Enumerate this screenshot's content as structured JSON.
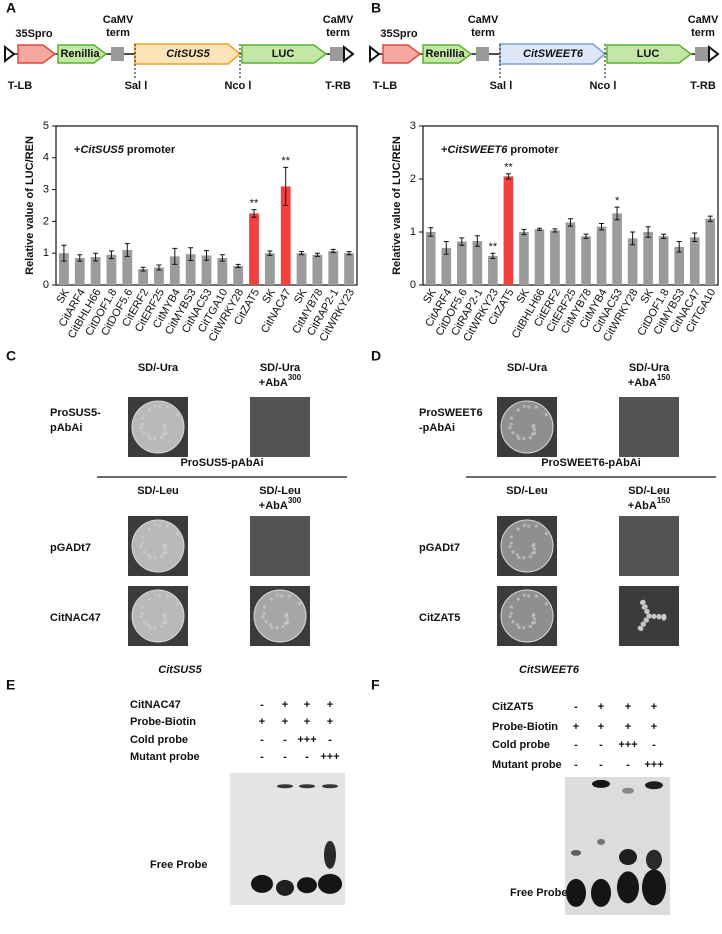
{
  "panel_labels": [
    "A",
    "B",
    "C",
    "D",
    "E",
    "F"
  ],
  "constructs": [
    {
      "promoter": "35Spro",
      "reporter": "Renillia",
      "terminator": [
        "CaMV",
        "term"
      ],
      "gene": "CitSUS5",
      "luc": "LUC",
      "terminator2": [
        "CaMV",
        "term"
      ],
      "left_border": "T-LB",
      "site1": "Sal Ⅰ",
      "site2": "Nco Ⅰ",
      "right_border": "T-RB"
    },
    {
      "promoter": "35Spro",
      "reporter": "Renillia",
      "terminator": [
        "CaMV",
        "term"
      ],
      "gene": "CitSWEET6",
      "luc": "LUC",
      "terminator2": [
        "CaMV",
        "term"
      ],
      "left_border": "T-LB",
      "site1": "Sal Ⅰ",
      "site2": "Nco Ⅰ",
      "right_border": "T-RB"
    }
  ],
  "chart_data": [
    {
      "type": "bar",
      "annotation_parts": [
        "+",
        "CitSUS5",
        " promoter"
      ],
      "ylabel": "Relative value of LUC/REN",
      "categories": [
        "SK",
        "CitARF4",
        "CitBHLH66",
        "CitDOF1.8",
        "CitDOF5.6",
        "CitERF2",
        "CitERF25",
        "CitMYB4",
        "CitMYBS3",
        "CitNAC53",
        "CitTGA10",
        "CitWRKY28",
        "CitZAT5",
        "SK",
        "CitNAC47",
        "SK",
        "CitMYB78",
        "CitRAP2-1",
        "CitWRKY23"
      ],
      "values": [
        1.0,
        0.85,
        0.88,
        0.95,
        1.1,
        0.5,
        0.55,
        0.9,
        0.97,
        0.93,
        0.85,
        0.6,
        2.25,
        1.0,
        3.1,
        1.0,
        0.95,
        1.07,
        1.0
      ],
      "errors": [
        0.25,
        0.1,
        0.12,
        0.12,
        0.2,
        0.06,
        0.08,
        0.25,
        0.2,
        0.15,
        0.1,
        0.05,
        0.12,
        0.07,
        0.6,
        0.05,
        0.05,
        0.05,
        0.05
      ],
      "significance": [
        null,
        null,
        null,
        null,
        null,
        null,
        null,
        null,
        null,
        null,
        null,
        null,
        "**",
        null,
        "**",
        null,
        null,
        null,
        null
      ],
      "colors": [
        "#9b9b9b",
        "#9b9b9b",
        "#9b9b9b",
        "#9b9b9b",
        "#9b9b9b",
        "#9b9b9b",
        "#9b9b9b",
        "#9b9b9b",
        "#9b9b9b",
        "#9b9b9b",
        "#9b9b9b",
        "#9b9b9b",
        "#f0403f",
        "#9b9b9b",
        "#f0403f",
        "#9b9b9b",
        "#9b9b9b",
        "#9b9b9b",
        "#9b9b9b"
      ],
      "ylim": [
        0,
        5
      ],
      "yticks": [
        0,
        1,
        2,
        3,
        4,
        5
      ]
    },
    {
      "type": "bar",
      "annotation_parts": [
        "+",
        "CitSWEET6",
        " promoter"
      ],
      "ylabel": "Relative value of LUC/REN",
      "categories": [
        "SK",
        "CitARF4",
        "CitDOF5.6",
        "CitRAP2-1",
        "CitWRKY23",
        "CitZAT5",
        "SK",
        "CitBHLH66",
        "CitERF2",
        "CitERF25",
        "CitMYB78",
        "CitMYB4",
        "CitNAC53",
        "CitWRKY28",
        "SK",
        "CitDOF1.8",
        "CitMYBS3",
        "CitNAC47",
        "CitTGA10"
      ],
      "values": [
        1.0,
        0.7,
        0.82,
        0.83,
        0.55,
        2.05,
        1.0,
        1.05,
        1.03,
        1.18,
        0.92,
        1.1,
        1.35,
        0.88,
        1.0,
        0.92,
        0.72,
        0.9,
        1.25
      ],
      "errors": [
        0.08,
        0.12,
        0.07,
        0.1,
        0.05,
        0.05,
        0.05,
        0.02,
        0.03,
        0.07,
        0.04,
        0.06,
        0.12,
        0.12,
        0.1,
        0.04,
        0.1,
        0.08,
        0.05
      ],
      "significance": [
        null,
        null,
        null,
        null,
        "**",
        "**",
        null,
        null,
        null,
        null,
        null,
        null,
        "*",
        null,
        null,
        null,
        null,
        null,
        null
      ],
      "colors": [
        "#9b9b9b",
        "#9b9b9b",
        "#9b9b9b",
        "#9b9b9b",
        "#9b9b9b",
        "#f0403f",
        "#9b9b9b",
        "#9b9b9b",
        "#9b9b9b",
        "#9b9b9b",
        "#9b9b9b",
        "#9b9b9b",
        "#9b9b9b",
        "#9b9b9b",
        "#9b9b9b",
        "#9b9b9b",
        "#9b9b9b",
        "#9b9b9b",
        "#9b9b9b"
      ],
      "ylim": [
        0,
        3
      ],
      "yticks": [
        0,
        1,
        2,
        3
      ]
    }
  ],
  "yeast": [
    {
      "col1": "SD/-Ura",
      "col2": "SD/-Ura",
      "col2_line2": "+AbA",
      "col2_sup": "300",
      "row_label": [
        "ProSUS5-",
        "pAbAi"
      ],
      "header": "ProSUS5-pAbAi",
      "col3": "SD/-Leu",
      "col4": "SD/-Leu",
      "col4_line2": "+AbA",
      "col4_sup": "300",
      "rows": [
        "pGADt7",
        "CitNAC47"
      ],
      "caption": "CitSUS5"
    },
    {
      "col1": "SD/-Ura",
      "col2": "SD/-Ura",
      "col2_line2": "+AbA",
      "col2_sup": "150",
      "row_label": [
        "ProSWEET6",
        "-pAbAi"
      ],
      "header": "ProSWEET6-pAbAi",
      "col3": "SD/-Leu",
      "col4": "SD/-Leu",
      "col4_line2": "+AbA",
      "col4_sup": "150",
      "rows": [
        "pGADt7",
        "CitZAT5"
      ],
      "caption": "CitSWEET6"
    }
  ],
  "emsa": [
    {
      "row_labels": [
        "CitNAC47",
        "Probe-Biotin",
        "Cold probe",
        "Mutant probe"
      ],
      "lanes": [
        [
          "-",
          "+",
          "+",
          "+"
        ],
        [
          "+",
          "+",
          "+",
          "+"
        ],
        [
          "-",
          "-",
          "+++",
          "-"
        ],
        [
          "-",
          "-",
          "-",
          "+++"
        ]
      ],
      "free_probe": "Free Probe"
    },
    {
      "row_labels": [
        "CitZAT5",
        "Probe-Biotin",
        "Cold probe",
        "Mutant probe"
      ],
      "lanes": [
        [
          "-",
          "+",
          "+",
          "+"
        ],
        [
          "+",
          "+",
          "+",
          "+"
        ],
        [
          "-",
          "-",
          "+++",
          "-"
        ],
        [
          "-",
          "-",
          "-",
          "+++"
        ]
      ],
      "free_probe": "Free Probe"
    }
  ]
}
